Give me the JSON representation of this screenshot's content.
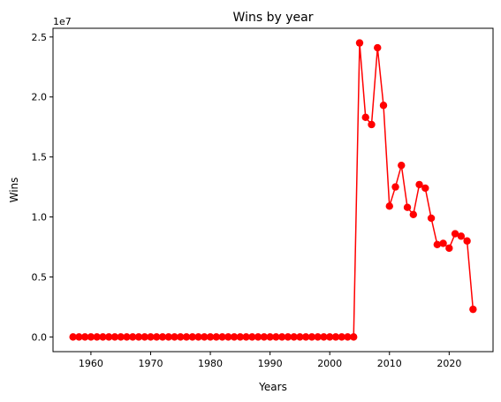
{
  "chart_data": {
    "type": "line",
    "title": "Wins by year",
    "xlabel": "Years",
    "ylabel": "Wins",
    "y_offset_label": "1e7",
    "xlim": [
      1953.65,
      2027.35
    ],
    "ylim": [
      -1225000,
      25725000
    ],
    "x_ticks": [
      1960,
      1970,
      1980,
      1990,
      2000,
      2010,
      2020
    ],
    "x_tick_labels": [
      "1960",
      "1970",
      "1980",
      "1990",
      "2000",
      "2010",
      "2020"
    ],
    "y_ticks": [
      0,
      5000000,
      10000000,
      15000000,
      20000000,
      25000000
    ],
    "y_tick_labels": [
      "0.0",
      "0.5",
      "1.0",
      "1.5",
      "2.0",
      "2.5"
    ],
    "grid": false,
    "series": [
      {
        "color": "#ff0000",
        "marker": "circle",
        "x": [
          1957,
          1958,
          1959,
          1960,
          1961,
          1962,
          1963,
          1964,
          1965,
          1966,
          1967,
          1968,
          1969,
          1970,
          1971,
          1972,
          1973,
          1974,
          1975,
          1976,
          1977,
          1978,
          1979,
          1980,
          1981,
          1982,
          1983,
          1984,
          1985,
          1986,
          1987,
          1988,
          1989,
          1990,
          1991,
          1992,
          1993,
          1994,
          1995,
          1996,
          1997,
          1998,
          1999,
          2000,
          2001,
          2002,
          2003,
          2004,
          2005,
          2006,
          2007,
          2008,
          2009,
          2010,
          2011,
          2012,
          2013,
          2014,
          2015,
          2016,
          2017,
          2018,
          2019,
          2020,
          2021,
          2022,
          2023,
          2024
        ],
        "y": [
          0,
          0,
          0,
          0,
          0,
          0,
          0,
          0,
          0,
          0,
          0,
          0,
          0,
          0,
          0,
          0,
          0,
          0,
          0,
          0,
          0,
          0,
          0,
          0,
          0,
          0,
          0,
          0,
          0,
          0,
          0,
          0,
          0,
          0,
          0,
          0,
          0,
          0,
          0,
          0,
          0,
          0,
          0,
          0,
          0,
          0,
          0,
          0,
          24500000,
          18300000,
          17700000,
          24100000,
          19300000,
          10900000,
          12500000,
          14300000,
          10800000,
          10200000,
          12700000,
          12400000,
          9900000,
          7700000,
          7800000,
          7400000,
          8600000,
          8400000,
          8000000,
          2300000
        ]
      }
    ]
  }
}
